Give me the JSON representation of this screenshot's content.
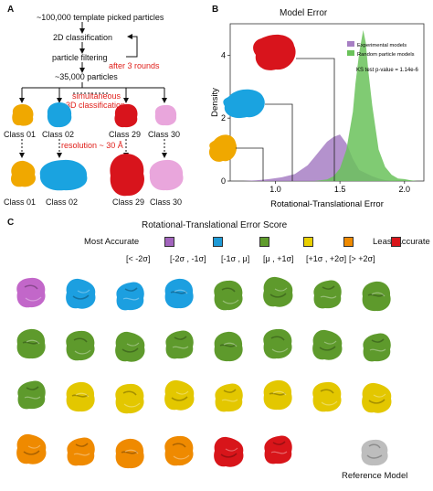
{
  "figure": {
    "panel_a": {
      "letter": "A",
      "start": "~100,000 template picked particles",
      "class2d": "2D classification",
      "filter": "particle filtering",
      "rounds": "after 3 rounds",
      "count": "~35,000 particles",
      "simul1": "simultaneous",
      "simul2": "3D classification",
      "resolution": "resolution ~ 30 Å",
      "classes": [
        "Class 01",
        "Class 02",
        "Class 29",
        "Class 30"
      ],
      "colors": [
        "#f0a800",
        "#1aa3e0",
        "#d8141c",
        "#e9a6dc"
      ]
    },
    "panel_b": {
      "letter": "B",
      "title": "Model Error",
      "ks": "KS test p-value = 1.14e-6"
    },
    "panel_c": {
      "letter": "C",
      "title": "Rotational-Translational Error Score",
      "legend_left": "Most Accurate",
      "legend_right": "Least Accurate",
      "bins": [
        {
          "label": "[< -2σ]",
          "color": "#a264bd"
        },
        {
          "label": "[-2σ , -1σ]",
          "color": "#1e9ad6"
        },
        {
          "label": "[-1σ , μ]",
          "color": "#5f9c2c"
        },
        {
          "label": "[μ , +1σ]",
          "color": "#e9cf00"
        },
        {
          "label": "[+1σ , +2σ]",
          "color": "#ef8a00"
        },
        {
          "label": "[> +2σ]",
          "color": "#d8151a"
        }
      ],
      "reference": "Reference Model",
      "reference_color": "#bdbdbd",
      "rows": [
        [
          "#c267c9",
          "#1c9fe0",
          "#1c9fe0",
          "#1c9fe0",
          "#5e9a2c",
          "#5e9a2c",
          "#5e9a2c",
          "#5e9a2c"
        ],
        [
          "#5e9a2c",
          "#5e9a2c",
          "#5e9a2c",
          "#5e9a2c",
          "#5e9a2c",
          "#5e9a2c",
          "#5e9a2c",
          "#5e9a2c"
        ],
        [
          "#5e9a2c",
          "#e3c700",
          "#e3c700",
          "#e3c700",
          "#e3c700",
          "#e3c700",
          "#e3c700",
          "#e3c700"
        ],
        [
          "#ef8a00",
          "#ef8a00",
          "#ef8a00",
          "#ef8a00",
          "#d8151a",
          "#d8151a"
        ]
      ]
    }
  },
  "chart_data": {
    "type": "area",
    "title": "Model Error",
    "xlabel": "Rotational-Translational Error",
    "ylabel": "Density",
    "xlim": [
      0.65,
      2.15
    ],
    "ylim": [
      0,
      5
    ],
    "xticks": [
      "1.0",
      "1.5",
      "2.0"
    ],
    "yticks": [
      "0",
      "2",
      "4"
    ],
    "legend": "top-right",
    "series": [
      {
        "name": "Experimental models",
        "color": "#a77fc4",
        "x": [
          0.75,
          0.85,
          0.95,
          1.05,
          1.15,
          1.25,
          1.3,
          1.35,
          1.4,
          1.45,
          1.5,
          1.55,
          1.6,
          1.65,
          1.7,
          1.75,
          1.8,
          1.85,
          1.95
        ],
        "y": [
          0,
          0.02,
          0.06,
          0.12,
          0.22,
          0.5,
          0.75,
          1.0,
          1.25,
          1.4,
          1.48,
          1.2,
          0.7,
          0.35,
          0.25,
          0.15,
          0.08,
          0.03,
          0
        ]
      },
      {
        "name": "Random particle models",
        "color": "#6ac25a",
        "x": [
          1.3,
          1.4,
          1.45,
          1.5,
          1.55,
          1.6,
          1.62,
          1.65,
          1.68,
          1.7,
          1.72,
          1.75,
          1.8,
          1.85,
          1.9,
          1.95,
          2.0,
          2.05,
          2.1
        ],
        "y": [
          0,
          0.05,
          0.15,
          0.4,
          1.0,
          2.2,
          3.1,
          4.1,
          4.8,
          4.4,
          3.5,
          2.4,
          1.0,
          0.45,
          0.2,
          0.08,
          0.06,
          0.02,
          0
        ]
      }
    ]
  }
}
